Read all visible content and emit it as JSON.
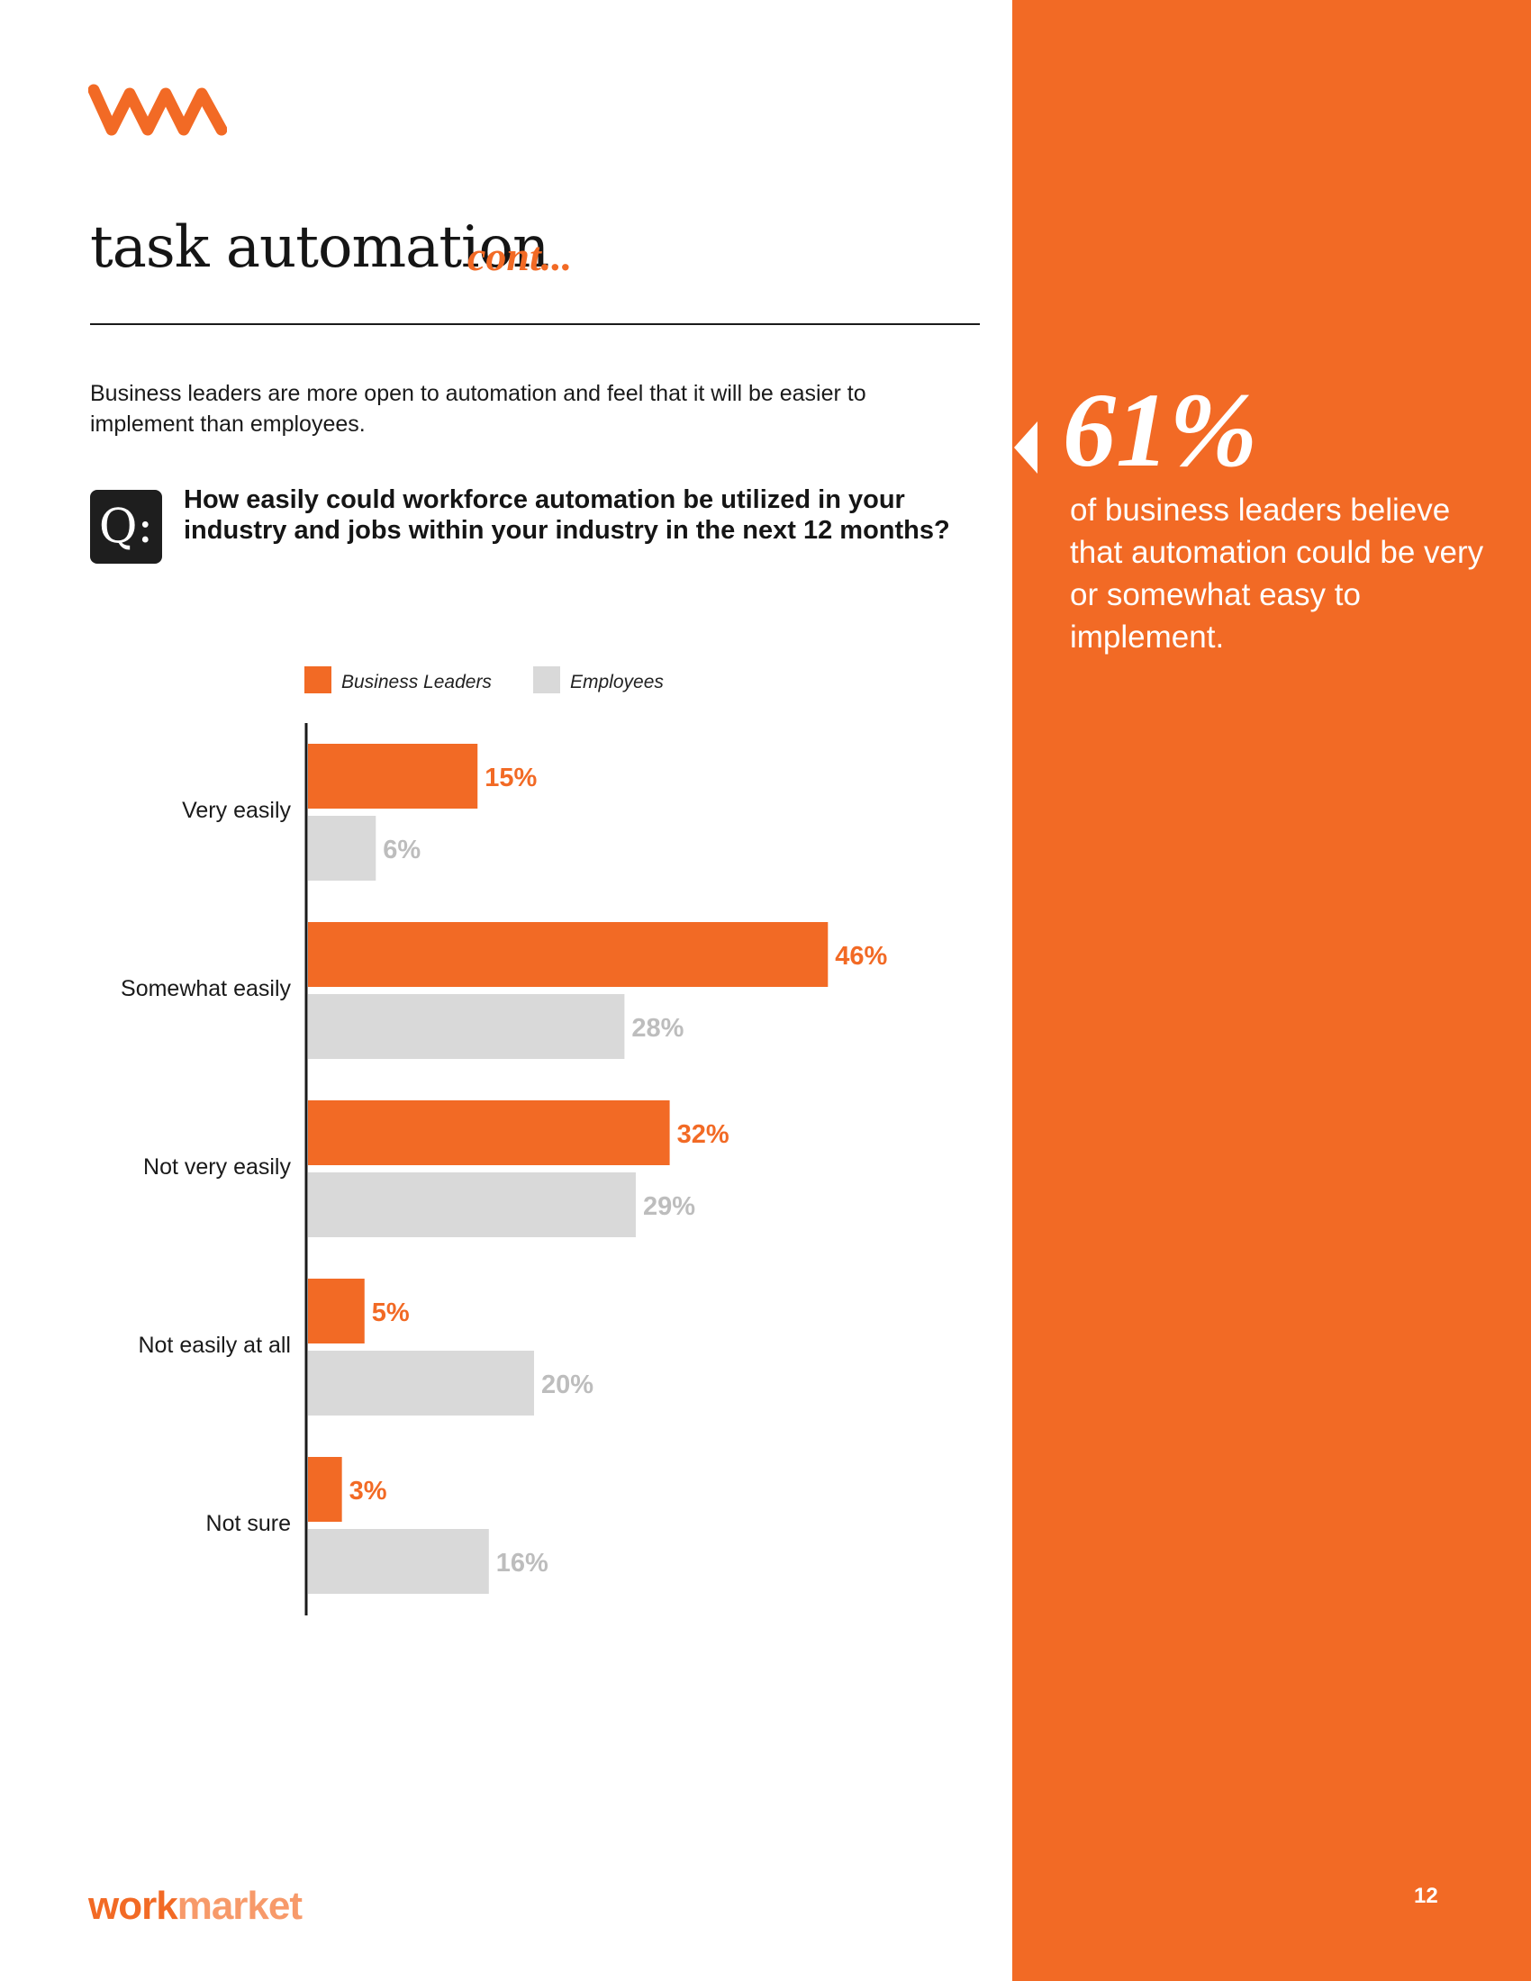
{
  "header": {
    "logo": "wm-logo-icon",
    "title": "task automation",
    "title_suffix": "cont..."
  },
  "intro": "Business leaders are more open to automation and feel that it will be easier to implement than employees.",
  "question": {
    "badge": "Q:",
    "text": "How easily could workforce automation be utilized in your industry and jobs within your industry in the next 12 months?"
  },
  "colors": {
    "accent": "#f26a25",
    "secondary": "#d9d9d9",
    "secondary_label": "#bdbdbd",
    "axis": "#1a1a1a"
  },
  "chart_data": {
    "type": "bar",
    "orientation": "horizontal",
    "title": "",
    "xlabel": "",
    "ylabel": "",
    "xlim": [
      0,
      50
    ],
    "legend_position": "top",
    "categories": [
      "Very easily",
      "Somewhat easily",
      "Not very easily",
      "Not easily at all",
      "Not sure"
    ],
    "series": [
      {
        "name": "Business Leaders",
        "values": [
          15,
          46,
          32,
          5,
          3
        ],
        "labels": [
          "15%",
          "46%",
          "32%",
          "5%",
          "3%"
        ]
      },
      {
        "name": "Employees",
        "values": [
          6,
          28,
          29,
          20,
          16
        ],
        "labels": [
          "6%",
          "28%",
          "29%",
          "20%",
          "16%"
        ]
      }
    ]
  },
  "sidebar": {
    "stat_number": "61%",
    "stat_text": "of business leaders believe that automation could be very or somewhat easy to implement.",
    "arrow_icon": "left-triangle-icon"
  },
  "footer": {
    "brand_bold": "work",
    "brand_light": "market",
    "page_number": "12"
  }
}
